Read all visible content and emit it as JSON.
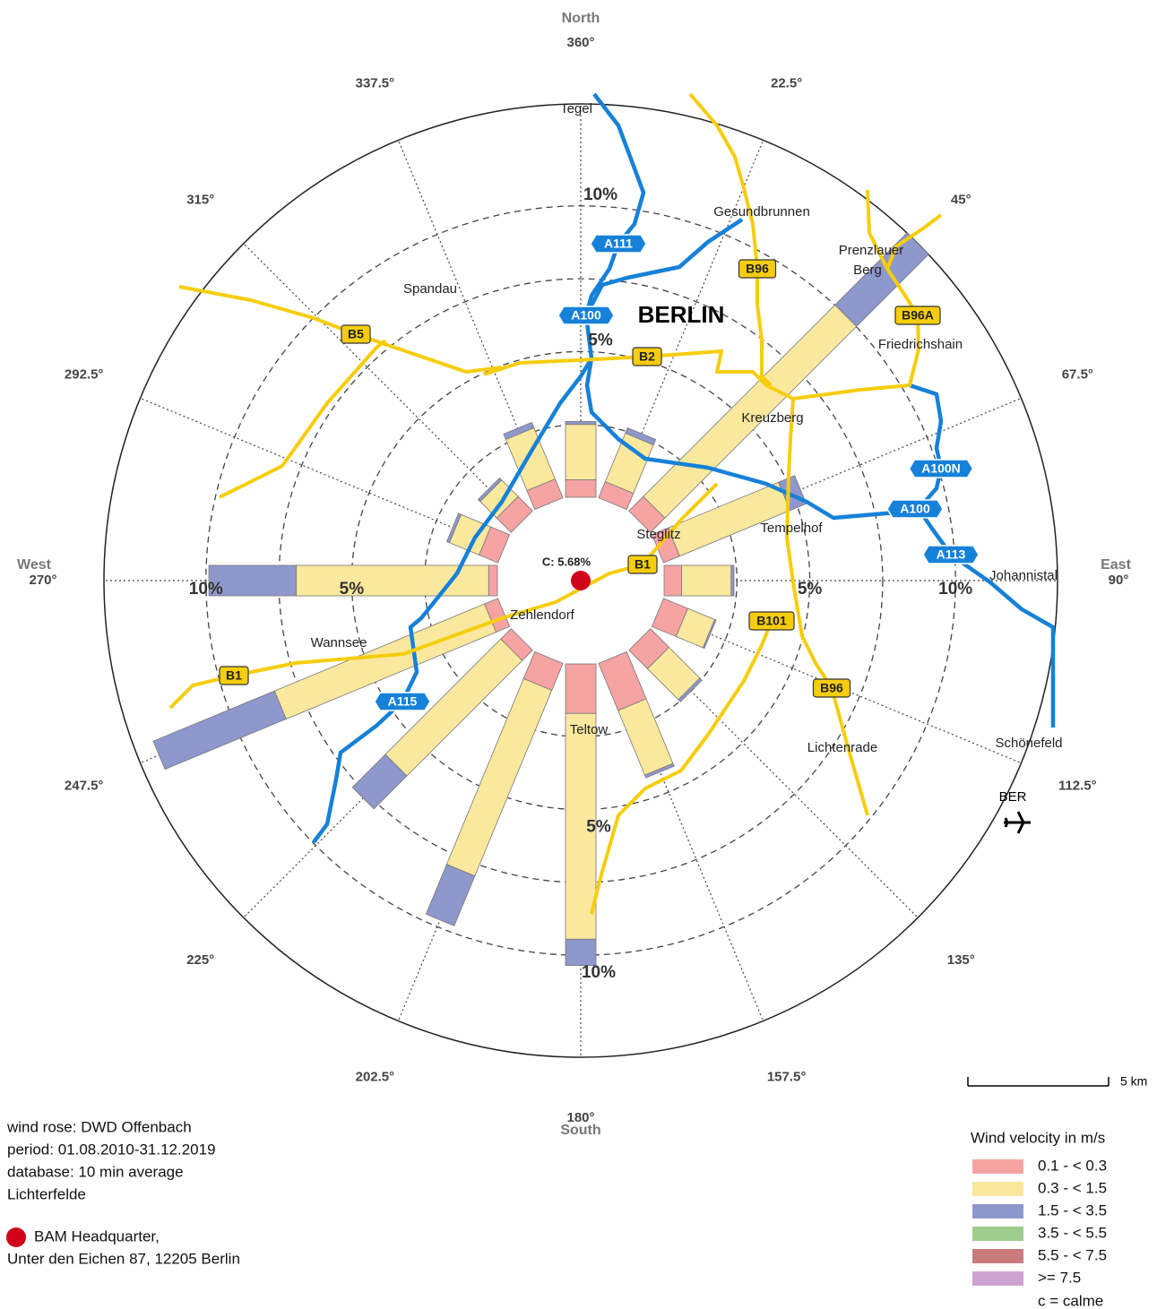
{
  "chart_data": {
    "type": "windrose",
    "directions": [
      "360°",
      "22.5°",
      "45°",
      "67.5°",
      "90°",
      "112.5°",
      "135°",
      "157.5°",
      "180°",
      "202.5°",
      "225°",
      "247.5°",
      "270°",
      "292.5°",
      "315°",
      "337.5°"
    ],
    "cardinals": [
      "North",
      "East",
      "South",
      "West"
    ],
    "series": [
      {
        "name": "0.1 - < 0.3",
        "color": "#f6a3a3",
        "values": [
          0.6,
          0.6,
          0.7,
          0.6,
          0.6,
          0.9,
          0.9,
          1.75,
          1.7,
          1.0,
          0.5,
          0.5,
          0.3,
          0.7,
          0.7,
          0.7
        ]
      },
      {
        "name": "0.3 - < 1.5",
        "color": "#f9e89d",
        "values": [
          1.9,
          1.8,
          9.3,
          4.1,
          1.7,
          1.0,
          1.5,
          2.4,
          7.75,
          6.9,
          5.6,
          7.8,
          6.6,
          1.1,
          0.8,
          1.9
        ]
      },
      {
        "name": "1.5 - < 3.5",
        "color": "#8f98cc",
        "values": [
          0.1,
          0.2,
          3.5,
          0.6,
          0.1,
          0.05,
          0.1,
          0.1,
          0.9,
          1.85,
          1.6,
          4.5,
          3.0,
          0.1,
          0.1,
          0.2
        ]
      },
      {
        "name": "3.5 - < 5.5",
        "color": "#9fcc8e",
        "values": [
          0,
          0,
          0,
          0,
          0,
          0,
          0,
          0,
          0,
          0,
          0,
          0,
          0,
          0,
          0,
          0
        ]
      },
      {
        "name": "5.5 - < 7.5",
        "color": "#c97a7c",
        "values": [
          0,
          0,
          0,
          0,
          0,
          0,
          0,
          0,
          0,
          0,
          0,
          0,
          0,
          0,
          0,
          0
        ]
      },
      {
        "name": ">= 7.5",
        "color": "#cfa3d0",
        "values": [
          0,
          0,
          0,
          0,
          0,
          0,
          0,
          0,
          0,
          0,
          0,
          0,
          0,
          0,
          0,
          0
        ]
      }
    ],
    "rlim": [
      0,
      13.5
    ],
    "rgrid": [
      2.5,
      5,
      7.5,
      10
    ],
    "rticks": [
      {
        "value": 5,
        "label": "5%"
      },
      {
        "value": 10,
        "label": "10%"
      }
    ],
    "calm": {
      "value": 5.68,
      "label": "C: 5.68%"
    },
    "legend_title": "Wind velocity in m/s",
    "legend_note": "c = calme"
  },
  "map": {
    "title": "BERLIN",
    "places": [
      "Tegel",
      "Gesundbrunnen",
      "Spandau",
      "Prenzlauer",
      "Berg",
      "Friedrichshain",
      "Kreuzberg",
      "Tempelhof",
      "Steglitz",
      "Johannistal",
      "Zehlendorf",
      "Wannsee",
      "Teltow",
      "Lichtenrade",
      "Schönefeld"
    ],
    "roads": [
      "A111",
      "A100",
      "B96",
      "B5",
      "B2",
      "B96A",
      "A100N",
      "A100",
      "A113",
      "B1",
      "B101",
      "B96",
      "B1",
      "A115"
    ],
    "scale_label": "5 km",
    "airport": "BER"
  },
  "notes": [
    "wind rose: DWD Offenbach",
    "period: 01.08.2010-31.12.2019",
    "database: 10 min average",
    "Lichterfelde"
  ],
  "marker_label": [
    "BAM Headquarter,",
    "Unter den Eichen 87, 12205 Berlin"
  ]
}
